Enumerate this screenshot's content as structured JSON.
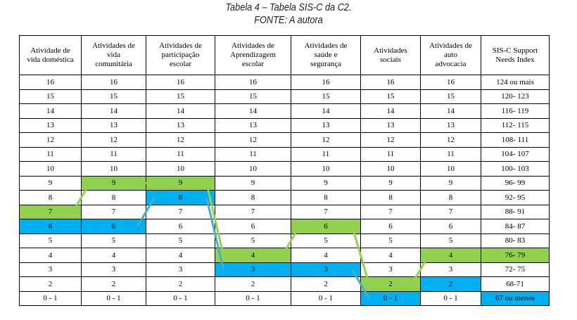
{
  "caption": {
    "title": "Tabela 4 – Tabela SIS-C da C2.",
    "source": "FONTE: A autora"
  },
  "table": {
    "header": [
      [
        "Atividade de",
        "vida doméstica"
      ],
      [
        "Atividades de",
        "vida",
        "comunitária"
      ],
      [
        "Atividades de",
        "participação",
        "escolar"
      ],
      [
        "Atividades de",
        "Aprendizagem",
        "escolar"
      ],
      [
        "Atividades de",
        "saúde e",
        "segurança"
      ],
      [
        "Atividades",
        "sociais"
      ],
      [
        "Atividades de",
        "auto",
        "advocacia"
      ],
      [
        "SIS-C Support",
        "Needs Index"
      ]
    ],
    "rows": [
      [
        "16",
        "16",
        "16",
        "16",
        "16",
        "16",
        "16",
        "124 ou mais"
      ],
      [
        "15",
        "15",
        "15",
        "15",
        "15",
        "15",
        "15",
        "120- 123"
      ],
      [
        "14",
        "14",
        "14",
        "14",
        "14",
        "14",
        "14",
        "116- 119"
      ],
      [
        "13",
        "13",
        "13",
        "13",
        "13",
        "13",
        "13",
        "112- 115"
      ],
      [
        "12",
        "12",
        "12",
        "12",
        "12",
        "12",
        "12",
        "108- 111"
      ],
      [
        "11",
        "11",
        "11",
        "11",
        "11",
        "11",
        "11",
        "104- 107"
      ],
      [
        "10",
        "10",
        "10",
        "10",
        "10",
        "10",
        "10",
        "100- 103"
      ],
      [
        "9",
        "9",
        "9",
        "9",
        "9",
        "9",
        "9",
        "96- 99"
      ],
      [
        "8",
        "8",
        "8",
        "8",
        "8",
        "8",
        "8",
        "92- 95"
      ],
      [
        "7",
        "7",
        "7",
        "7",
        "7",
        "7",
        "7",
        "88- 91"
      ],
      [
        "6",
        "6",
        "6",
        "6",
        "6",
        "6",
        "6",
        "84- 87"
      ],
      [
        "5",
        "5",
        "5",
        "5",
        "5",
        "5",
        "5",
        "80- 83"
      ],
      [
        "4",
        "4",
        "4",
        "4",
        "4",
        "4",
        "4",
        "76- 79"
      ],
      [
        "3",
        "3",
        "3",
        "3",
        "3",
        "3",
        "3",
        "72- 75"
      ],
      [
        "2",
        "2",
        "2",
        "2",
        "2",
        "2",
        "2",
        "68-71"
      ],
      [
        "0 - 1",
        "0 - 1",
        "0 - 1",
        "0 - 1",
        "0 - 1",
        "0 - 1",
        "0 - 1",
        "67 ou menos"
      ]
    ]
  }
}
